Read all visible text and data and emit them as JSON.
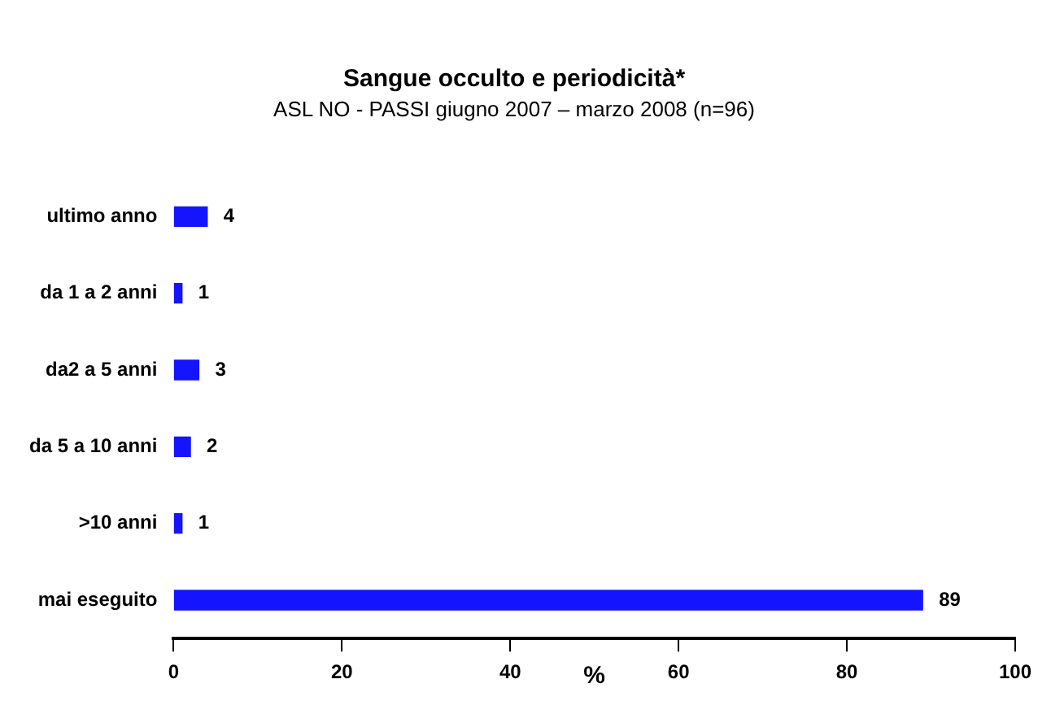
{
  "chart_data": {
    "type": "bar",
    "orientation": "horizontal",
    "title": "Sangue occulto e periodicità*",
    "subtitle": "ASL NO - PASSI giugno 2007 – marzo 2008 (n=96)",
    "categories": [
      "ultimo anno",
      "da 1 a 2 anni",
      "da2 a 5 anni",
      "da 5 a 10 anni",
      ">10 anni",
      "mai eseguito"
    ],
    "values": [
      4,
      1,
      3,
      2,
      1,
      89
    ],
    "color": "#1414ff",
    "xlabel": "%",
    "xlim": [
      0,
      100
    ],
    "xticks": [
      0,
      20,
      40,
      60,
      80,
      100
    ],
    "grid": false,
    "legend": false,
    "data_labels": true
  }
}
